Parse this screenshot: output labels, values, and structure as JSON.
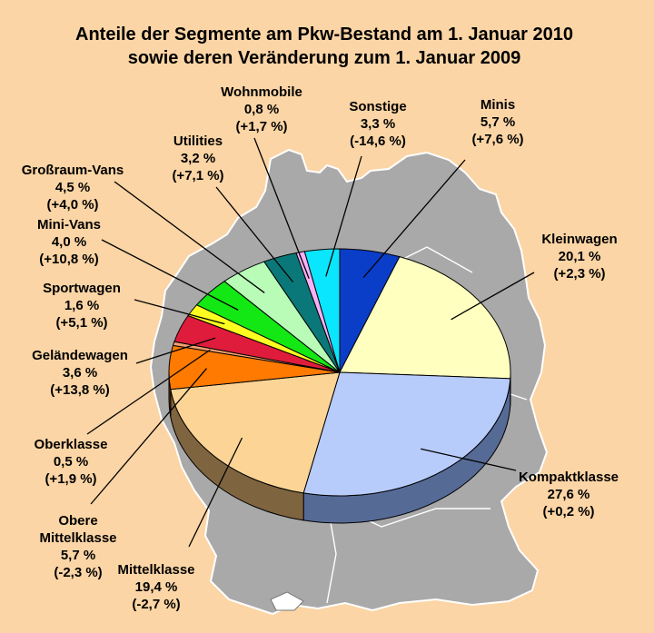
{
  "chart_data": {
    "type": "pie",
    "title_lines": [
      "Anteile der Segmente am Pkw-Bestand am 1. Januar 2010",
      "sowie deren Veränderung zum 1. Januar 2009"
    ],
    "unit": "%",
    "slices": [
      {
        "name": "Minis",
        "share": 5.7,
        "share_text": "5,7 %",
        "change": 7.6,
        "change_text": "(+7,6 %)",
        "color": "#0a3dc8",
        "side": "#051e64"
      },
      {
        "name": "Kleinwagen",
        "share": 20.1,
        "share_text": "20,1 %",
        "change": 2.3,
        "change_text": "(+2,3 %)",
        "color": "#ffffc0",
        "side": "#9a9a6a"
      },
      {
        "name": "Kompaktklasse",
        "share": 27.6,
        "share_text": "27,6 %",
        "change": 0.2,
        "change_text": "(+0,2 %)",
        "color": "#b8ccfc",
        "side": "#566a96"
      },
      {
        "name": "Mittelklasse",
        "share": 19.4,
        "share_text": "19,4 %",
        "change": -2.7,
        "change_text": "(-2,7 %)",
        "color": "#fcd596",
        "side": "#7f6440"
      },
      {
        "name": "Obere Mittelklasse",
        "label_lines": [
          "Obere",
          "Mittelklasse"
        ],
        "share": 5.7,
        "share_text": "5,7 %",
        "change": -2.3,
        "change_text": "(-2,3 %)",
        "color": "#fe7a00",
        "side": "#7a3800"
      },
      {
        "name": "Oberklasse",
        "share": 0.5,
        "share_text": "0,5 %",
        "change": 1.9,
        "change_text": "(+1,9 %)",
        "color": "#f4a070",
        "side": "#7a4a30"
      },
      {
        "name": "Geländewagen",
        "share": 3.6,
        "share_text": "3,6 %",
        "change": 13.8,
        "change_text": "(+13,8 %)",
        "color": "#e01c3c",
        "side": "#701020"
      },
      {
        "name": "Sportwagen",
        "share": 1.6,
        "share_text": "1,6 %",
        "change": 5.1,
        "change_text": "(+5,1 %)",
        "color": "#fefe20",
        "side": "#808010"
      },
      {
        "name": "Mini-Vans",
        "share": 4.0,
        "share_text": "4,0 %",
        "change": 10.8,
        "change_text": "(+10,8 %)",
        "color": "#14e814",
        "side": "#0a700a"
      },
      {
        "name": "Großraum-Vans",
        "share": 4.5,
        "share_text": "4,5 %",
        "change": 4.0,
        "change_text": "(+4,0 %)",
        "color": "#b8fcb8",
        "side": "#5a7a5a"
      },
      {
        "name": "Utilities",
        "share": 3.2,
        "share_text": "3,2 %",
        "change": 7.1,
        "change_text": "(+7,1 %)",
        "color": "#0a7878",
        "side": "#053c3c"
      },
      {
        "name": "Wohnmobile",
        "share": 0.8,
        "share_text": "0,8 %",
        "change": 1.7,
        "change_text": "(+1,7 %)",
        "color": "#f8b0f8",
        "side": "#7a587a"
      },
      {
        "name": "Sonstige",
        "share": 3.3,
        "share_text": "3,3 %",
        "change": -14.6,
        "change_text": "(-14,6 %)",
        "color": "#0ae6fe",
        "side": "#05727e"
      }
    ],
    "background_map": "Deutschland",
    "colors": {
      "background": "#fbd5a5",
      "map": "#a9a9a9",
      "map_border": "#ffffff"
    }
  }
}
